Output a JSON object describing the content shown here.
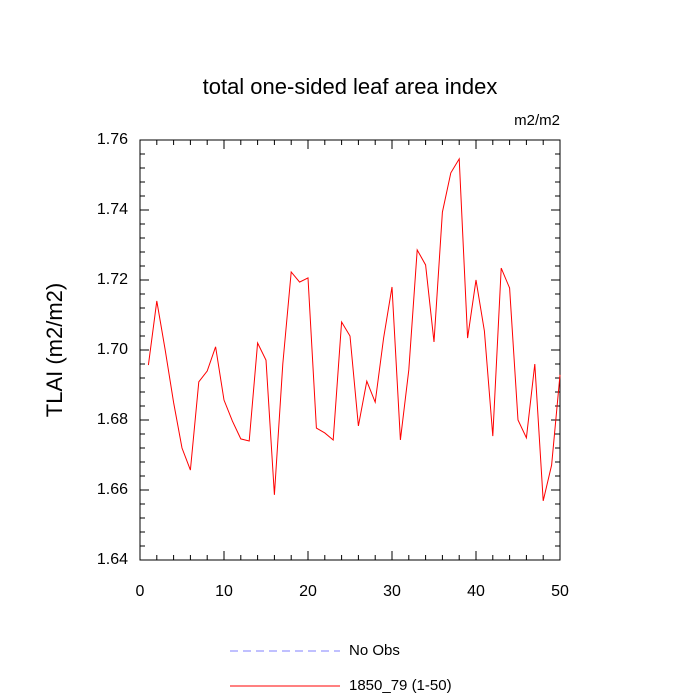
{
  "chart_data": {
    "type": "line",
    "title": "total one-sided leaf area index",
    "subtitle": "m2/m2",
    "y_label": "TLAI  (m2/m2)",
    "x": [
      1,
      2,
      3,
      4,
      5,
      6,
      7,
      8,
      9,
      10,
      11,
      12,
      13,
      14,
      15,
      16,
      17,
      18,
      19,
      20,
      21,
      22,
      23,
      24,
      25,
      26,
      27,
      28,
      29,
      30,
      31,
      32,
      33,
      34,
      35,
      36,
      37,
      38,
      39,
      40,
      41,
      42,
      43,
      44,
      45,
      46,
      47,
      48,
      49,
      50
    ],
    "series": [
      {
        "name": "No Obs",
        "color": "#8080ff",
        "dash": true,
        "values": [
          null,
          null,
          null,
          null,
          null,
          null,
          null,
          null,
          null,
          null,
          null,
          null,
          null,
          null,
          null,
          null,
          null,
          null,
          null,
          null,
          null,
          null,
          null,
          null,
          null,
          null,
          null,
          null,
          null,
          null,
          null,
          null,
          null,
          null,
          null,
          null,
          null,
          null,
          null,
          null,
          null,
          null,
          null,
          null,
          null,
          null,
          null,
          null,
          null,
          null
        ]
      },
      {
        "name": "1850_79 (1-50)",
        "color": "#ff0000",
        "dash": false,
        "values": [
          1.6957,
          1.714,
          1.7,
          1.685,
          1.672,
          1.6657,
          1.6909,
          1.694,
          1.7009,
          1.6857,
          1.6797,
          1.6746,
          1.674,
          1.702,
          1.6971,
          1.6586,
          1.696,
          1.7223,
          1.7194,
          1.7206,
          1.6777,
          1.6763,
          1.6743,
          1.708,
          1.704,
          1.6783,
          1.6911,
          1.6851,
          1.7034,
          1.718,
          1.6743,
          1.6943,
          1.7286,
          1.7243,
          1.7023,
          1.7394,
          1.7506,
          1.7546,
          1.7034,
          1.72,
          1.7054,
          1.6754,
          1.7234,
          1.7177,
          1.68,
          1.6749,
          1.696,
          1.6569,
          1.6671,
          1.6929
        ]
      }
    ],
    "xlim": [
      0,
      50
    ],
    "xticks": [
      0,
      10,
      20,
      30,
      40,
      50
    ],
    "ylim": [
      1.64,
      1.76
    ],
    "yticks": [
      1.64,
      1.66,
      1.68,
      {
        "value": 1.7,
        "label": "1.70"
      },
      1.72,
      1.74,
      1.76
    ],
    "legend": "bottom"
  }
}
